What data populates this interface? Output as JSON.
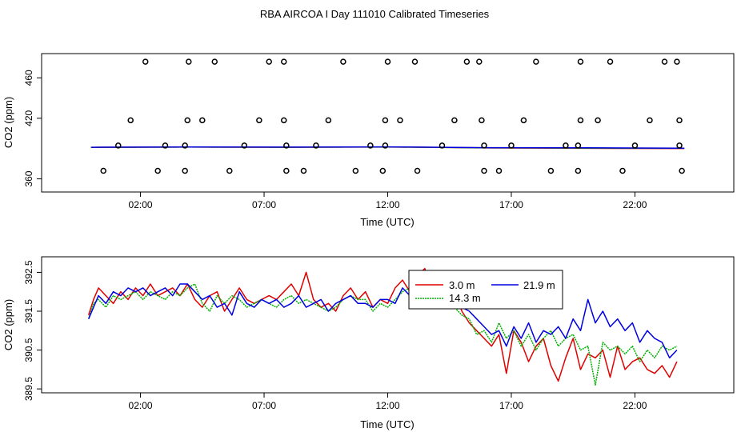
{
  "title": "RBA AIRCOA I  Day 111010  Calibrated Timeseries",
  "chart_data": [
    {
      "type": "scatter",
      "xlabel": "Time (UTC)",
      "ylabel": "CO2 (ppm)",
      "x_unit": "hours UTC",
      "xlim": [
        -2,
        26
      ],
      "ylim": [
        347,
        484
      ],
      "xticks": [
        2,
        7,
        12,
        17,
        22
      ],
      "xtick_labels": [
        "02:00",
        "07:00",
        "12:00",
        "17:00",
        "22:00"
      ],
      "yticks": [
        360,
        420,
        460
      ],
      "ytick_labels": [
        "360",
        "420",
        "460"
      ],
      "grid": false,
      "marker_points": [
        {
          "x": 0.5,
          "y": 368
        },
        {
          "x": 1.1,
          "y": 393
        },
        {
          "x": 1.6,
          "y": 418
        },
        {
          "x": 2.2,
          "y": 476
        },
        {
          "x": 3.0,
          "y": 393
        },
        {
          "x": 2.7,
          "y": 368
        },
        {
          "x": 3.8,
          "y": 393
        },
        {
          "x": 3.8,
          "y": 368
        },
        {
          "x": 3.9,
          "y": 418
        },
        {
          "x": 3.95,
          "y": 476
        },
        {
          "x": 4.5,
          "y": 418
        },
        {
          "x": 5.0,
          "y": 476
        },
        {
          "x": 5.6,
          "y": 368
        },
        {
          "x": 6.2,
          "y": 393
        },
        {
          "x": 6.8,
          "y": 418
        },
        {
          "x": 7.2,
          "y": 476
        },
        {
          "x": 7.8,
          "y": 476
        },
        {
          "x": 7.8,
          "y": 418
        },
        {
          "x": 7.9,
          "y": 393
        },
        {
          "x": 7.9,
          "y": 368
        },
        {
          "x": 8.6,
          "y": 368
        },
        {
          "x": 9.1,
          "y": 393
        },
        {
          "x": 9.6,
          "y": 418
        },
        {
          "x": 10.2,
          "y": 476
        },
        {
          "x": 10.7,
          "y": 368
        },
        {
          "x": 11.3,
          "y": 393
        },
        {
          "x": 11.8,
          "y": 368
        },
        {
          "x": 11.9,
          "y": 393
        },
        {
          "x": 11.9,
          "y": 418
        },
        {
          "x": 12.0,
          "y": 476
        },
        {
          "x": 12.5,
          "y": 418
        },
        {
          "x": 13.2,
          "y": 368
        },
        {
          "x": 13.1,
          "y": 476
        },
        {
          "x": 14.2,
          "y": 393
        },
        {
          "x": 14.7,
          "y": 418
        },
        {
          "x": 15.2,
          "y": 476
        },
        {
          "x": 15.7,
          "y": 476
        },
        {
          "x": 15.8,
          "y": 418
        },
        {
          "x": 15.9,
          "y": 393
        },
        {
          "x": 15.9,
          "y": 368
        },
        {
          "x": 16.5,
          "y": 368
        },
        {
          "x": 17.0,
          "y": 393
        },
        {
          "x": 17.5,
          "y": 418
        },
        {
          "x": 18.0,
          "y": 476
        },
        {
          "x": 18.6,
          "y": 368
        },
        {
          "x": 19.2,
          "y": 393
        },
        {
          "x": 19.7,
          "y": 393
        },
        {
          "x": 19.7,
          "y": 368
        },
        {
          "x": 19.8,
          "y": 418
        },
        {
          "x": 19.8,
          "y": 476
        },
        {
          "x": 20.5,
          "y": 418
        },
        {
          "x": 21.0,
          "y": 476
        },
        {
          "x": 21.5,
          "y": 368
        },
        {
          "x": 22.0,
          "y": 393
        },
        {
          "x": 22.6,
          "y": 418
        },
        {
          "x": 23.2,
          "y": 476
        },
        {
          "x": 23.7,
          "y": 476
        },
        {
          "x": 23.8,
          "y": 418
        },
        {
          "x": 23.8,
          "y": 393
        },
        {
          "x": 23.9,
          "y": 368
        }
      ],
      "series": [
        {
          "color": "#e00000",
          "x": [
            0,
            4,
            8,
            12,
            16,
            20,
            24
          ],
          "y": [
            391.2,
            391.5,
            391.3,
            391.6,
            390.6,
            390.2,
            390.1
          ]
        },
        {
          "color": "#00b000",
          "x": [
            0,
            4,
            8,
            12,
            16,
            20,
            24
          ],
          "y": [
            391.2,
            391.4,
            391.3,
            391.5,
            390.7,
            390.4,
            390.3
          ]
        },
        {
          "color": "#0000e0",
          "x": [
            0,
            4,
            8,
            12,
            16,
            20,
            24
          ],
          "y": [
            391.3,
            391.6,
            391.4,
            391.7,
            390.9,
            390.8,
            390.4
          ]
        }
      ]
    },
    {
      "type": "line",
      "xlabel": "Time (UTC)",
      "ylabel": "CO2 (ppm)",
      "x_unit": "hours UTC",
      "xlim": [
        -2,
        26
      ],
      "ylim": [
        389.4,
        392.9
      ],
      "xticks": [
        2,
        7,
        12,
        17,
        22
      ],
      "xtick_labels": [
        "02:00",
        "07:00",
        "12:00",
        "17:00",
        "22:00"
      ],
      "yticks": [
        389.5,
        390.5,
        391.5,
        392.5
      ],
      "ytick_labels": [
        "389.5",
        "390.5",
        "391.5",
        "392.5"
      ],
      "grid": false,
      "legend_placement": "top-center",
      "series": [
        {
          "name": "3.0 m",
          "color": "#e00000",
          "x": [
            -0.1,
            0.1,
            0.3,
            0.6,
            0.9,
            1.2,
            1.5,
            1.8,
            2.1,
            2.4,
            2.7,
            3.0,
            3.3,
            3.6,
            3.9,
            4.2,
            4.5,
            4.8,
            5.1,
            5.4,
            5.7,
            6.0,
            6.3,
            6.6,
            6.9,
            7.2,
            7.5,
            7.8,
            8.1,
            8.4,
            8.7,
            9.0,
            9.3,
            9.6,
            9.9,
            10.2,
            10.5,
            10.8,
            11.1,
            11.4,
            11.7,
            12.0,
            12.3,
            12.6,
            12.9,
            13.2,
            13.5,
            13.8,
            14.1,
            14.4,
            14.7,
            15.0,
            15.3,
            15.6,
            15.9,
            16.2,
            16.5,
            16.8,
            17.1,
            17.4,
            17.7,
            18.0,
            18.3,
            18.6,
            18.9,
            19.2,
            19.5,
            19.8,
            20.1,
            20.4,
            20.7,
            21.0,
            21.3,
            21.6,
            21.9,
            22.2,
            22.5,
            22.8,
            23.1,
            23.4,
            23.7
          ],
          "y": [
            391.4,
            391.8,
            392.1,
            391.9,
            391.7,
            392.0,
            391.8,
            392.1,
            391.9,
            392.2,
            391.9,
            392.0,
            392.1,
            391.9,
            392.2,
            391.8,
            391.6,
            391.9,
            392.0,
            391.5,
            391.8,
            392.1,
            391.8,
            391.7,
            391.8,
            391.9,
            391.8,
            392.0,
            392.2,
            391.9,
            392.5,
            391.8,
            391.6,
            391.7,
            391.5,
            391.9,
            392.1,
            391.8,
            392.0,
            391.6,
            391.8,
            391.7,
            392.1,
            392.3,
            392.0,
            392.4,
            392.6,
            392.1,
            392.3,
            391.9,
            392.0,
            391.5,
            391.2,
            391.0,
            390.8,
            390.6,
            390.9,
            389.9,
            391.0,
            390.7,
            390.2,
            390.6,
            390.8,
            390.1,
            389.7,
            390.3,
            390.8,
            390.0,
            390.4,
            390.3,
            390.5,
            389.8,
            390.6,
            390.0,
            390.2,
            390.3,
            390.0,
            389.9,
            390.1,
            389.8,
            390.2
          ]
        },
        {
          "name": "14.3 m",
          "color": "#00b000",
          "x": [
            -0.1,
            0.1,
            0.3,
            0.6,
            0.9,
            1.2,
            1.5,
            1.8,
            2.1,
            2.4,
            2.7,
            3.0,
            3.3,
            3.6,
            3.9,
            4.2,
            4.5,
            4.8,
            5.1,
            5.4,
            5.7,
            6.0,
            6.3,
            6.6,
            6.9,
            7.2,
            7.5,
            7.8,
            8.1,
            8.4,
            8.7,
            9.0,
            9.3,
            9.6,
            9.9,
            10.2,
            10.5,
            10.8,
            11.1,
            11.4,
            11.7,
            12.0,
            12.3,
            12.6,
            12.9,
            13.2,
            13.5,
            13.8,
            14.1,
            14.4,
            14.7,
            15.0,
            15.3,
            15.6,
            15.9,
            16.2,
            16.5,
            16.8,
            17.1,
            17.4,
            17.7,
            18.0,
            18.3,
            18.6,
            18.9,
            19.2,
            19.5,
            19.8,
            20.1,
            20.4,
            20.7,
            21.0,
            21.3,
            21.6,
            21.9,
            22.2,
            22.5,
            22.8,
            23.1,
            23.4,
            23.7
          ],
          "y": [
            391.3,
            391.7,
            391.8,
            391.6,
            391.9,
            391.8,
            391.9,
            392.0,
            391.8,
            392.0,
            391.9,
            391.8,
            392.0,
            391.9,
            392.1,
            392.2,
            391.7,
            391.5,
            391.9,
            391.7,
            391.9,
            391.8,
            391.6,
            391.7,
            391.8,
            391.7,
            391.6,
            391.8,
            391.9,
            391.7,
            391.8,
            391.7,
            391.6,
            391.5,
            391.6,
            391.8,
            391.9,
            391.8,
            391.8,
            391.5,
            391.7,
            391.6,
            391.8,
            392.0,
            392.1,
            392.0,
            392.2,
            392.0,
            392.1,
            391.8,
            391.6,
            391.4,
            391.3,
            390.9,
            391.0,
            390.7,
            391.2,
            390.8,
            391.0,
            390.6,
            390.9,
            390.5,
            390.8,
            391.0,
            390.6,
            390.8,
            390.9,
            390.5,
            390.6,
            389.6,
            390.7,
            390.5,
            390.6,
            390.4,
            390.6,
            390.2,
            390.5,
            390.3,
            390.6,
            390.5,
            390.6
          ]
        },
        {
          "name": "21.9 m",
          "color": "#0000e0",
          "x": [
            -0.1,
            0.1,
            0.3,
            0.6,
            0.9,
            1.2,
            1.5,
            1.8,
            2.1,
            2.4,
            2.7,
            3.0,
            3.3,
            3.6,
            3.9,
            4.2,
            4.5,
            4.8,
            5.1,
            5.4,
            5.7,
            6.0,
            6.3,
            6.6,
            6.9,
            7.2,
            7.5,
            7.8,
            8.1,
            8.4,
            8.7,
            9.0,
            9.3,
            9.6,
            9.9,
            10.2,
            10.5,
            10.8,
            11.1,
            11.4,
            11.7,
            12.0,
            12.3,
            12.6,
            12.9,
            13.2,
            13.5,
            13.8,
            14.1,
            14.4,
            14.7,
            15.0,
            15.3,
            15.6,
            15.9,
            16.2,
            16.5,
            16.8,
            17.1,
            17.4,
            17.7,
            18.0,
            18.3,
            18.6,
            18.9,
            19.2,
            19.5,
            19.8,
            20.1,
            20.4,
            20.7,
            21.0,
            21.3,
            21.6,
            21.9,
            22.2,
            22.5,
            22.8,
            23.1,
            23.4,
            23.7
          ],
          "y": [
            391.3,
            391.6,
            391.9,
            391.7,
            392.0,
            391.9,
            392.1,
            392.0,
            392.1,
            391.9,
            392.0,
            392.1,
            391.9,
            392.2,
            392.2,
            392.0,
            391.8,
            391.9,
            391.6,
            391.7,
            391.4,
            392.0,
            391.7,
            391.6,
            391.8,
            391.7,
            391.8,
            391.6,
            391.7,
            391.9,
            391.6,
            391.7,
            391.8,
            391.5,
            391.7,
            391.8,
            391.9,
            391.7,
            391.7,
            391.6,
            391.8,
            391.8,
            391.7,
            392.1,
            391.9,
            392.2,
            392.1,
            392.2,
            392.0,
            392.1,
            391.8,
            391.6,
            391.5,
            391.3,
            391.1,
            390.9,
            391.0,
            390.6,
            391.1,
            390.8,
            391.2,
            390.7,
            391.0,
            390.9,
            391.1,
            390.8,
            391.3,
            391.0,
            391.8,
            391.2,
            391.5,
            391.1,
            391.3,
            391.0,
            391.2,
            390.7,
            391.0,
            390.8,
            390.7,
            390.3,
            390.5
          ]
        }
      ]
    }
  ]
}
